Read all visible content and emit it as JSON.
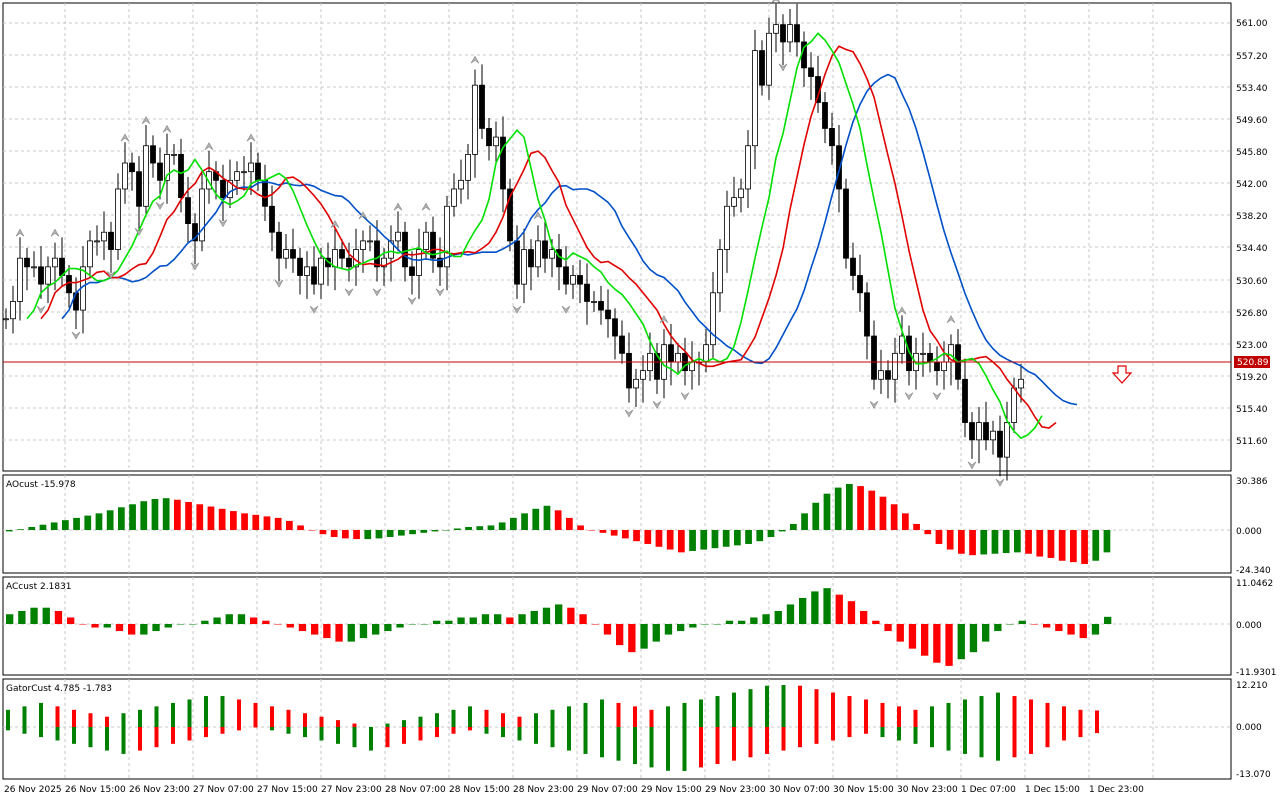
{
  "colors": {
    "background": "#ffffff",
    "grid": "#c8c8c8",
    "bull": "#008000",
    "bear": "#ff0000",
    "alligator_lips": "#00e000",
    "alligator_teeth": "#e00000",
    "alligator_jaw": "#0050c8",
    "price_line": "#c00000",
    "candle_body_down": "#000000",
    "candle_body_up": "#ffffff",
    "fractal": "#b4b4b4"
  },
  "x_axis": {
    "labels": [
      "26 Nov 2025",
      "26 Nov 15:00",
      "26 Nov 23:00",
      "27 Nov 07:00",
      "27 Nov 15:00",
      "27 Nov 23:00",
      "28 Nov 07:00",
      "28 Nov 15:00",
      "28 Nov 23:00",
      "29 Nov 07:00",
      "29 Nov 15:00",
      "29 Nov 23:00",
      "30 Nov 07:00",
      "30 Nov 15:00",
      "30 Nov 23:00",
      "1 Dec 07:00",
      "1 Dec 15:00",
      "1 Dec 23:00"
    ]
  },
  "panes": {
    "main": {
      "y_ticks": [
        "561.00",
        "557.20",
        "553.40",
        "549.60",
        "545.80",
        "542.00",
        "538.20",
        "534.40",
        "530.60",
        "526.80",
        "523.00",
        "519.20",
        "515.40",
        "511.60"
      ],
      "current_price": "520.89"
    },
    "ao": {
      "label": "AOcust -15.978",
      "y_ticks": [
        "30.386",
        "0.000",
        "-24.340"
      ]
    },
    "ac": {
      "label": "ACcust 2.1831",
      "y_ticks": [
        "11.0462",
        "0.000",
        "-11.9301"
      ]
    },
    "gator": {
      "label": "GatorCust 4.785 -1.783",
      "y_ticks": [
        "12.210",
        "0.000",
        "-13.070"
      ]
    }
  },
  "chart_data": [
    {
      "type": "candlestick",
      "title": "",
      "ylim": [
        509.4,
        563.5
      ],
      "y_ticks": [
        561.0,
        557.2,
        553.4,
        549.6,
        545.8,
        542.0,
        538.2,
        534.4,
        530.6,
        526.8,
        523.0,
        519.2,
        515.4,
        511.6
      ],
      "current_price": 520.89,
      "close": [
        527,
        529,
        534,
        533,
        533,
        531,
        533,
        534,
        532,
        530,
        528,
        533,
        536,
        536,
        537,
        535,
        542,
        545,
        544,
        540,
        547,
        545,
        543,
        546,
        546,
        541,
        538,
        536,
        542,
        544,
        543,
        541,
        543,
        544,
        544,
        545,
        543,
        540,
        537,
        534,
        535,
        534,
        532,
        533,
        531,
        534,
        533,
        535,
        534,
        533,
        535,
        536,
        536,
        533,
        534,
        536,
        537,
        533,
        532,
        535,
        537,
        534,
        533,
        540,
        542,
        543,
        546,
        554,
        549,
        547,
        548,
        542,
        536,
        531,
        535,
        533,
        536,
        534,
        535,
        533,
        531,
        532,
        531,
        529,
        529,
        528,
        527,
        525,
        523,
        519,
        520,
        521,
        523,
        520,
        524,
        522,
        523,
        521,
        522,
        522,
        524,
        530,
        535,
        540,
        541,
        542,
        547,
        558,
        554,
        560,
        561,
        559,
        561,
        559,
        556,
        555,
        552,
        549,
        547,
        542,
        534,
        532,
        530,
        525,
        520,
        521,
        520,
        523,
        525,
        521,
        523,
        523,
        522,
        521,
        522,
        524,
        520,
        515,
        513,
        515,
        513,
        514,
        511,
        515,
        519,
        520
      ],
      "ao": [
        -1.0,
        0.5,
        2.0,
        3.5,
        5.0,
        6.5,
        8.0,
        9.5,
        11.0,
        13.0,
        15.0,
        17.0,
        19.0,
        20.5,
        21.0,
        20.0,
        18.5,
        17.0,
        15.5,
        14.0,
        12.5,
        11.0,
        10.0,
        9.0,
        8.0,
        6.0,
        3.0,
        0.0,
        -3.0,
        -5.0,
        -6.0,
        -6.5,
        -6.5,
        -6.0,
        -5.0,
        -4.0,
        -3.0,
        -2.0,
        -1.0,
        0.0,
        1.0,
        2.0,
        2.5,
        3.0,
        5.0,
        8.0,
        11.0,
        14.0,
        16.0,
        13.0,
        8.0,
        3.0,
        0.0,
        -2.0,
        -4.0,
        -6.0,
        -8.0,
        -10.0,
        -12.0,
        -14.0,
        -16.0,
        -15.0,
        -14.0,
        -13.0,
        -12.0,
        -11.0,
        -10.0,
        -8.0,
        -5.0,
        -1.0,
        4.0,
        11.0,
        18.0,
        24.0,
        28.0,
        30.4,
        29.0,
        26.0,
        22.0,
        17.0,
        11.0,
        4.0,
        -3.0,
        -10.0,
        -14.0,
        -17.0,
        -18.0,
        -17.5,
        -17.0,
        -16.5,
        -16.0,
        -17.0,
        -19.0,
        -20.0,
        -22.0,
        -23.0,
        -24.3,
        -22.0,
        -16.0
      ],
      "ac": [
        3,
        4,
        5,
        5,
        4,
        2,
        0,
        -1,
        -1,
        -2,
        -3,
        -3,
        -2,
        -1,
        0,
        0,
        1,
        2,
        3,
        3,
        2,
        1,
        0,
        -1,
        -2,
        -3,
        -4,
        -5,
        -5,
        -4,
        -3,
        -2,
        -1,
        0,
        0,
        1,
        1,
        2,
        2,
        3,
        3,
        2,
        3,
        4,
        5,
        6,
        5,
        3,
        0,
        -3,
        -6,
        -8,
        -7,
        -5,
        -3,
        -2,
        -1,
        0,
        0,
        1,
        1,
        2,
        3,
        4,
        6,
        8,
        10,
        11,
        9,
        7,
        4,
        1,
        -2,
        -5,
        -7,
        -9,
        -11,
        -11.9,
        -10,
        -8,
        -5,
        -2,
        0,
        1,
        0,
        -1,
        -2,
        -3,
        -4,
        -3,
        2.2
      ],
      "gator_upper": [
        5,
        6,
        7,
        6,
        5,
        4,
        3,
        4,
        5,
        6,
        7,
        8,
        9,
        9,
        8,
        7,
        6,
        5,
        4,
        3,
        2,
        1,
        0,
        1,
        2,
        3,
        4,
        5,
        6,
        5,
        4,
        3,
        4,
        5,
        6,
        7,
        8,
        7,
        6,
        5,
        6,
        7,
        8,
        9,
        10,
        11,
        12,
        12.2,
        12,
        11,
        10,
        9,
        8,
        7,
        6,
        5,
        6,
        7,
        8,
        9,
        10,
        9,
        8,
        7,
        6,
        5,
        4.8
      ],
      "gator_lower": [
        -1,
        -2,
        -3,
        -4,
        -5,
        -6,
        -7,
        -8,
        -7,
        -6,
        -5,
        -4,
        -3,
        -2,
        -1,
        0,
        -1,
        -2,
        -3,
        -4,
        -5,
        -6,
        -7,
        -6,
        -5,
        -4,
        -3,
        -2,
        -1,
        -2,
        -3,
        -4,
        -5,
        -6,
        -7,
        -8,
        -9,
        -10,
        -11,
        -12,
        -13,
        -13.07,
        -12,
        -11,
        -10,
        -9,
        -8,
        -7,
        -6,
        -5,
        -4,
        -3,
        -2,
        -3,
        -4,
        -5,
        -6,
        -7,
        -8,
        -9,
        -10,
        -9,
        -8,
        -6,
        -4,
        -3,
        -1.8
      ]
    }
  ]
}
